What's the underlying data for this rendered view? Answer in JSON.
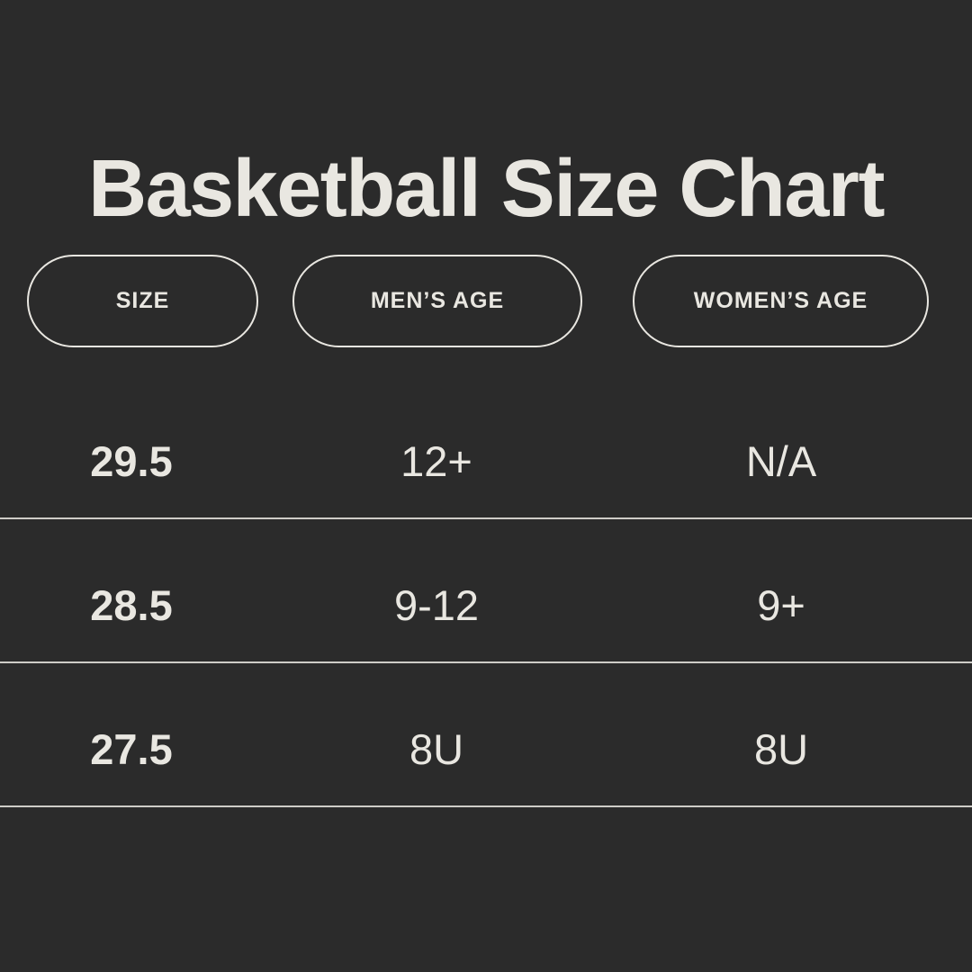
{
  "page": {
    "background_color": "#2b2b2b",
    "text_color": "#e9e7e1",
    "divider_color": "#ceccc7"
  },
  "title": "Basketball Size Chart",
  "table": {
    "headers": [
      {
        "label": "SIZE"
      },
      {
        "label": "MEN’S AGE"
      },
      {
        "label": "WOMEN’S AGE"
      }
    ],
    "rows": [
      {
        "size": "29.5",
        "mens_age": "12+",
        "womens_age": "N/A"
      },
      {
        "size": "28.5",
        "mens_age": "9-12",
        "womens_age": "9+"
      },
      {
        "size": "27.5",
        "mens_age": "8U",
        "womens_age": "8U"
      }
    ]
  },
  "chart_data": {
    "type": "table",
    "title": "Basketball Size Chart",
    "columns": [
      "SIZE",
      "MEN’S AGE",
      "WOMEN’S AGE"
    ],
    "rows": [
      [
        "29.5",
        "12+",
        "N/A"
      ],
      [
        "28.5",
        "9-12",
        "9+"
      ],
      [
        "27.5",
        "8U",
        "8U"
      ]
    ]
  }
}
